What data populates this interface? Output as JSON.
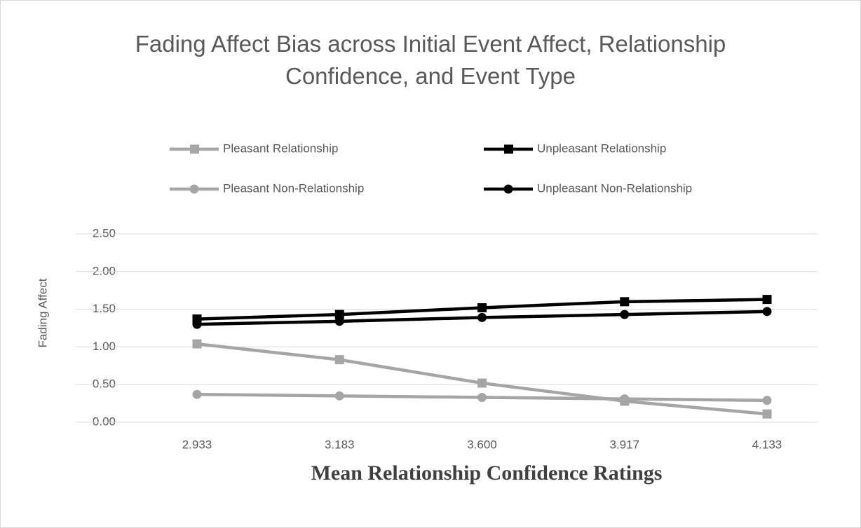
{
  "chart_data": {
    "type": "line",
    "title": "Fading Affect Bias across Initial Event Affect, Relationship Confidence, and Event Type",
    "x_label": "Mean Relationship Confidence Ratings",
    "y_label": "Fading Affect",
    "categories": [
      "2.933",
      "3.183",
      "3.600",
      "3.917",
      "4.133"
    ],
    "series": [
      {
        "name": "Pleasant Relationship",
        "color": "#a5a5a5",
        "marker": "square",
        "values": [
          1.04,
          0.83,
          0.52,
          0.28,
          0.11
        ]
      },
      {
        "name": "Unpleasant Relationship",
        "color": "#000000",
        "marker": "square",
        "values": [
          1.37,
          1.43,
          1.52,
          1.6,
          1.63
        ]
      },
      {
        "name": "Pleasant Non-Relationship",
        "color": "#a5a5a5",
        "marker": "circle",
        "values": [
          0.37,
          0.35,
          0.33,
          0.31,
          0.29
        ]
      },
      {
        "name": "Unpleasant Non-Relationship",
        "color": "#000000",
        "marker": "circle",
        "values": [
          1.3,
          1.34,
          1.39,
          1.43,
          1.47
        ]
      }
    ],
    "ylim": [
      0,
      2.5
    ],
    "yticks": [
      {
        "value": 0,
        "label": "0.00"
      },
      {
        "value": 0.5,
        "label": "0.50"
      },
      {
        "value": 1,
        "label": "1.00"
      },
      {
        "value": 1.5,
        "label": "1.50"
      },
      {
        "value": 2,
        "label": "2.00"
      },
      {
        "value": 2.5,
        "label": "2.50"
      }
    ],
    "grid": true,
    "legend": "top"
  }
}
